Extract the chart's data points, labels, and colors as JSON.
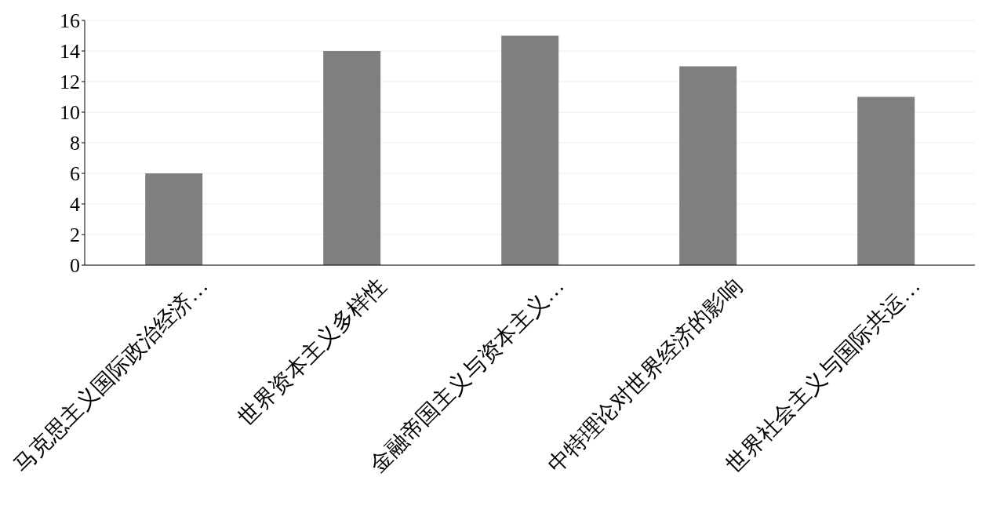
{
  "chart_data": {
    "type": "bar",
    "categories": [
      "马克思主义国际政治经济…",
      "世界资本主义多样性",
      "金融帝国主义与资本主义…",
      "中特理论对世界经济的影响",
      "世界社会主义与国际共运…"
    ],
    "values": [
      6,
      14,
      15,
      13,
      11
    ],
    "color": "#7f7f7f",
    "ylim": [
      0,
      16
    ],
    "yticks": [
      0,
      2,
      4,
      6,
      8,
      10,
      12,
      14,
      16
    ],
    "grid": "y"
  }
}
